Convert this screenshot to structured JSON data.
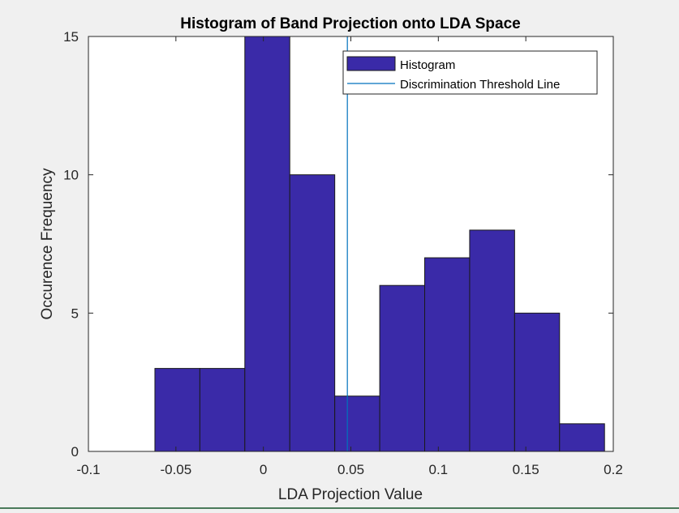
{
  "chart_data": {
    "type": "bar",
    "title": "Histogram of Band Projection onto LDA Space",
    "xlabel": "LDA Projection Value",
    "ylabel": "Occurence Frequency",
    "xlim": [
      -0.1,
      0.2
    ],
    "ylim": [
      0,
      15
    ],
    "xticks": [
      -0.1,
      -0.05,
      0,
      0.05,
      0.1,
      0.15,
      0.2
    ],
    "xtick_labels": [
      "-0.1",
      "-0.05",
      "0",
      "0.05",
      "0.1",
      "0.15",
      "0.2"
    ],
    "yticks": [
      0,
      5,
      10,
      15
    ],
    "ytick_labels": [
      "0",
      "5",
      "10",
      "15"
    ],
    "bin_edges": [
      -0.062,
      -0.0363,
      -0.0106,
      0.0151,
      0.0408,
      0.0665,
      0.0922,
      0.1179,
      0.1436,
      0.1693,
      0.195
    ],
    "counts": [
      3,
      3,
      15,
      10,
      2,
      6,
      7,
      8,
      5,
      1
    ],
    "threshold_x": 0.048,
    "grid": false,
    "legend_position": "top-right",
    "series": [
      {
        "name": "Histogram",
        "kind": "histogram",
        "color": "#3a2aa8"
      },
      {
        "name": "Discrimination Threshold Line",
        "kind": "vline",
        "color": "#0072bd"
      }
    ],
    "colors": {
      "bar_fill": "#3a2aa8",
      "bar_edge": "#1a1a1a",
      "threshold": "#0072bd",
      "axes": "#262626",
      "background": "#ffffff",
      "figure_background": "#f0f0f0"
    }
  }
}
